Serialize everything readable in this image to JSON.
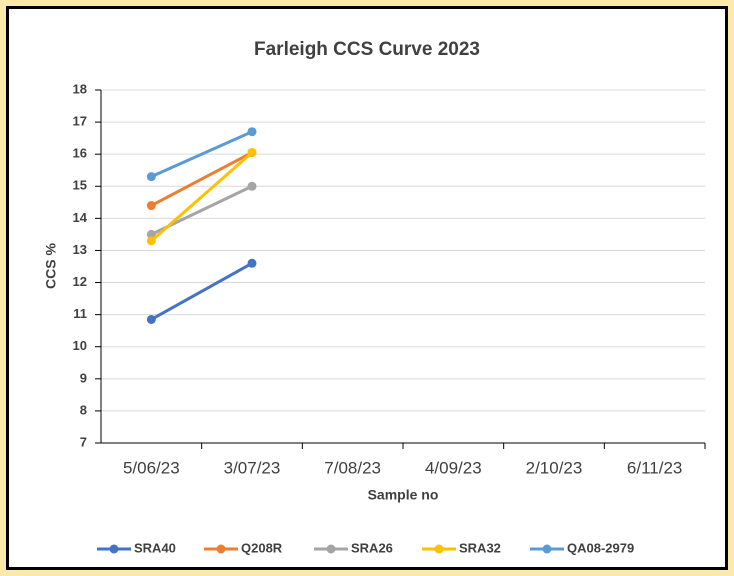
{
  "chart_data": {
    "type": "line",
    "title": "Farleigh CCS Curve 2023",
    "x_label": "Sample no",
    "y_label": "CCS %",
    "categories": [
      "5/06/23",
      "3/07/23",
      "7/08/23",
      "4/09/23",
      "2/10/23",
      "6/11/23"
    ],
    "series": [
      {
        "name": "SRA40",
        "color": "#4472c4",
        "values": [
          10.85,
          12.6,
          null,
          null,
          null,
          null
        ]
      },
      {
        "name": "Q208R",
        "color": "#ed7d31",
        "values": [
          14.4,
          16.05,
          null,
          null,
          null,
          null
        ]
      },
      {
        "name": "SRA26",
        "color": "#a5a5a5",
        "values": [
          13.5,
          15.0,
          null,
          null,
          null,
          null
        ]
      },
      {
        "name": "SRA32",
        "color": "#ffc000",
        "values": [
          13.3,
          16.05,
          null,
          null,
          null,
          null
        ]
      },
      {
        "name": "QA08-2979",
        "color": "#5b9bd5",
        "values": [
          15.3,
          16.7,
          null,
          null,
          null,
          null
        ]
      }
    ],
    "ylim": [
      7,
      18
    ],
    "yticks": [
      7,
      8,
      9,
      10,
      11,
      12,
      13,
      14,
      15,
      16,
      17,
      18
    ],
    "grid": true,
    "legend": "bottom"
  }
}
